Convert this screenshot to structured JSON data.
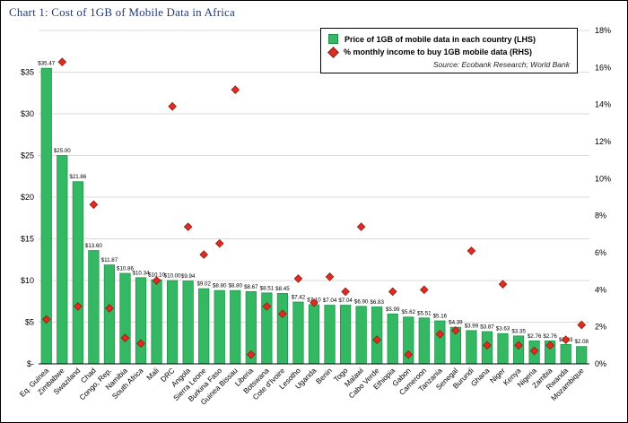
{
  "page": {
    "title": "Chart 1: Cost of 1GB of Mobile Data in Africa"
  },
  "legend": {
    "price_label": "Price of 1GB of mobile data in each country (LHS)",
    "income_label": "% monthly income to buy 1GB mobile data (RHS)",
    "source": "Source: Ecobank Research; World Bank"
  },
  "colors": {
    "title": "#1f3978",
    "bar_fill": "#35b863",
    "bar_border": "#1e9347",
    "diamond_fill": "#df2b20",
    "diamond_border": "#8e1b12",
    "gridline": "#d9d9d9",
    "axis": "#000000",
    "label_text": "#000000"
  },
  "chart_data": {
    "type": "bar",
    "title": "Chart 1: Cost of 1GB of Mobile Data in Africa",
    "grid": true,
    "legend_position": "top-right",
    "categories": [
      "Eq. Guinea",
      "Zimbabwe",
      "Swaziland",
      "Chad",
      "Congo, Rep.",
      "Namibia",
      "South Africa",
      "Mali",
      "DRC",
      "Angola",
      "Sierra Leone",
      "Burkina Faso",
      "Guinea Bissau",
      "Liberia",
      "Botswana",
      "Cote d'Ivoire",
      "Lesotho",
      "Uganda",
      "Benin",
      "Togo",
      "Malawi",
      "Cabo Verde",
      "Ethiopia",
      "Gabon",
      "Cameroon",
      "Tanzania",
      "Senegal",
      "Burundi",
      "Ghana",
      "Niger",
      "Kenya",
      "Nigeria",
      "Zambia",
      "Rwanda",
      "Mozambique"
    ],
    "series": [
      {
        "name": "Price of 1GB of mobile data in each country (LHS)",
        "type": "bar",
        "axis": "left",
        "unit": "USD",
        "values": [
          35.47,
          25.0,
          21.86,
          13.6,
          11.87,
          10.86,
          10.34,
          10.1,
          10.0,
          9.94,
          9.02,
          8.8,
          8.8,
          8.67,
          8.51,
          8.45,
          7.42,
          7.1,
          7.04,
          7.04,
          6.9,
          6.83,
          5.99,
          5.62,
          5.51,
          5.16,
          4.39,
          3.99,
          3.87,
          3.63,
          3.35,
          2.76,
          2.76,
          2.33,
          2.08
        ]
      },
      {
        "name": "% monthly income to buy 1GB mobile data (RHS)",
        "type": "scatter",
        "axis": "right",
        "unit": "%",
        "values": [
          2.4,
          16.3,
          3.1,
          8.6,
          3.0,
          1.4,
          1.1,
          4.5,
          13.9,
          7.4,
          5.9,
          6.5,
          14.8,
          0.5,
          3.1,
          2.7,
          4.6,
          3.3,
          4.7,
          3.9,
          7.4,
          1.3,
          3.9,
          0.5,
          4.0,
          1.6,
          1.8,
          6.1,
          1.0,
          4.3,
          1.0,
          0.7,
          1.0,
          1.3,
          2.1
        ]
      }
    ],
    "left_axis": {
      "min": 0,
      "max": 40,
      "step": 5,
      "tick_labels": [
        "$-",
        "$5",
        "$10",
        "$15",
        "$20",
        "$25",
        "$30",
        "$35"
      ]
    },
    "right_axis": {
      "min": 0,
      "max": 18,
      "step": 2,
      "tick_labels": [
        "0%",
        "2%",
        "4%",
        "6%",
        "8%",
        "10%",
        "12%",
        "14%",
        "16%",
        "18%"
      ]
    }
  }
}
